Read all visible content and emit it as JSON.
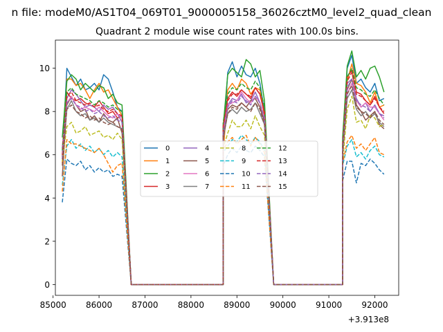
{
  "suptitle": "n file: modeM0/AS1T04_069T01_9000005158_36026cztM0_level2_quad_clean",
  "chart_data": {
    "type": "line",
    "title": "Quadrant 2 module wise count rates with 100.0s bins.",
    "xlabel": "",
    "ylabel": "",
    "x_offset_label": "+3.913e8",
    "xlim": [
      85050,
      92520
    ],
    "ylim": [
      -0.5,
      11.3
    ],
    "x_ticks": [
      85000,
      86000,
      87000,
      88000,
      89000,
      90000,
      91000,
      92000
    ],
    "x_tick_labels": [
      "85000",
      "86000",
      "87000",
      "88000",
      "89000",
      "90000",
      "91000",
      "92000"
    ],
    "y_ticks": [
      0,
      2,
      4,
      6,
      8,
      10
    ],
    "y_tick_labels": [
      "0",
      "2",
      "4",
      "6",
      "8",
      "10"
    ],
    "grid": false,
    "legend_position": "center",
    "legend_columns": 4,
    "orbits": [
      {
        "x_start": 85200,
        "x_end": 86500,
        "x_step": 100,
        "fall_to_zero_at": 86700
      },
      {
        "x_start": 88700,
        "x_end": 89600,
        "x_step": 100,
        "zero_before": 88700,
        "fall_to_zero_at": 89800
      },
      {
        "x_start": 91300,
        "x_end": 92200,
        "x_step": 100,
        "zero_before": 91300
      }
    ],
    "zero_span": [
      [
        86700,
        88700
      ],
      [
        89800,
        91300
      ]
    ],
    "series": [
      {
        "name": "0",
        "color": "#1f77b4",
        "dash": "solid",
        "values": [
          [
            5.9,
            10.0,
            9.6,
            9.2,
            9.5,
            9.0,
            9.1,
            9.3,
            9.0,
            9.7,
            9.5,
            8.9,
            8.2,
            8.0
          ],
          [
            6.5,
            9.8,
            10.3,
            9.6,
            10.1,
            9.7,
            9.6,
            10.0,
            9.3,
            8.0
          ],
          [
            6.5,
            10.0,
            10.6,
            9.3,
            9.5,
            9.1,
            8.9,
            9.3,
            8.5,
            8.6
          ]
        ]
      },
      {
        "name": "1",
        "color": "#ff7f0e",
        "dash": "solid",
        "values": [
          [
            5.6,
            9.5,
            9.5,
            9.2,
            9.3,
            9.0,
            8.6,
            9.0,
            9.3,
            8.9,
            9.0,
            8.6,
            8.2,
            7.8
          ],
          [
            6.0,
            9.0,
            9.3,
            9.0,
            9.5,
            9.3,
            8.8,
            9.1,
            9.0,
            7.8
          ],
          [
            6.0,
            9.4,
            10.2,
            9.3,
            9.2,
            8.9,
            8.4,
            8.9,
            8.2,
            8.3
          ]
        ]
      },
      {
        "name": "2",
        "color": "#2ca02c",
        "dash": "solid",
        "values": [
          [
            6.8,
            9.4,
            9.7,
            9.5,
            9.0,
            9.3,
            9.1,
            8.9,
            9.2,
            9.1,
            8.6,
            8.8,
            8.4,
            8.3
          ],
          [
            7.3,
            9.7,
            10.0,
            9.8,
            9.6,
            10.4,
            10.2,
            9.6,
            9.9,
            8.5
          ],
          [
            6.8,
            10.1,
            10.8,
            9.6,
            9.9,
            9.5,
            10.0,
            10.1,
            9.6,
            8.9
          ]
        ]
      },
      {
        "name": "3",
        "color": "#d62728",
        "dash": "solid",
        "values": [
          [
            5.8,
            8.9,
            8.6,
            8.5,
            8.6,
            8.4,
            8.3,
            8.2,
            8.5,
            8.2,
            7.9,
            8.0,
            7.7,
            7.8
          ],
          [
            7.2,
            8.6,
            8.9,
            8.7,
            9.0,
            8.8,
            8.6,
            9.1,
            8.8,
            7.9
          ],
          [
            6.5,
            9.6,
            9.9,
            8.9,
            8.8,
            8.5,
            8.3,
            8.7,
            8.2,
            7.9
          ]
        ]
      },
      {
        "name": "4",
        "color": "#9467bd",
        "dash": "solid",
        "values": [
          [
            6.3,
            8.6,
            9.0,
            8.8,
            8.5,
            8.2,
            8.3,
            8.2,
            8.0,
            8.3,
            8.1,
            8.2,
            7.9,
            7.5
          ],
          [
            6.8,
            8.3,
            8.6,
            8.5,
            8.8,
            8.4,
            8.5,
            8.9,
            8.4,
            7.6
          ],
          [
            6.2,
            9.3,
            9.5,
            8.6,
            8.2,
            8.4,
            8.0,
            8.3,
            7.9,
            7.8
          ]
        ]
      },
      {
        "name": "5",
        "color": "#8c564b",
        "dash": "solid",
        "values": [
          [
            5.0,
            8.3,
            8.7,
            8.3,
            8.0,
            8.1,
            7.6,
            7.8,
            7.5,
            7.9,
            7.6,
            7.5,
            7.7,
            7.0
          ],
          [
            7.0,
            8.1,
            8.3,
            8.2,
            8.4,
            8.2,
            8.5,
            8.6,
            8.2,
            7.5
          ],
          [
            6.0,
            9.0,
            9.5,
            8.3,
            8.0,
            7.6,
            7.8,
            8.0,
            7.4,
            7.2
          ]
        ]
      },
      {
        "name": "6",
        "color": "#e377c2",
        "dash": "solid",
        "values": [
          [
            6.4,
            8.4,
            8.7,
            8.3,
            8.1,
            8.2,
            8.1,
            8.0,
            8.2,
            8.0,
            7.8,
            7.7,
            7.9,
            7.7
          ],
          [
            7.1,
            8.3,
            8.4,
            8.5,
            8.9,
            8.6,
            8.4,
            8.7,
            8.4,
            7.7
          ],
          [
            6.2,
            8.8,
            9.3,
            8.5,
            8.2,
            8.4,
            8.2,
            8.2,
            7.9,
            7.6
          ]
        ]
      },
      {
        "name": "7",
        "color": "#7f7f7f",
        "dash": "solid",
        "values": [
          [
            6.0,
            8.1,
            8.5,
            8.0,
            7.8,
            7.9,
            7.6,
            7.7,
            7.5,
            7.7,
            7.5,
            7.4,
            7.3,
            7.2
          ],
          [
            6.7,
            7.9,
            8.1,
            7.9,
            8.2,
            8.0,
            8.1,
            8.4,
            7.9,
            7.4
          ],
          [
            6.0,
            8.6,
            9.0,
            8.1,
            7.8,
            8.0,
            7.7,
            7.9,
            7.5,
            7.3
          ]
        ]
      },
      {
        "name": "8",
        "color": "#bcbd22",
        "dash": "dash",
        "values": [
          [
            5.7,
            7.3,
            7.5,
            7.0,
            7.1,
            7.3,
            6.9,
            7.0,
            7.1,
            6.8,
            6.9,
            6.7,
            7.0,
            6.7
          ],
          [
            6.3,
            7.0,
            7.6,
            7.3,
            7.3,
            7.6,
            7.2,
            7.8,
            7.3,
            6.9
          ],
          [
            5.6,
            8.1,
            8.7,
            7.5,
            7.6,
            7.2,
            7.8,
            7.7,
            7.3,
            7.4
          ]
        ]
      },
      {
        "name": "9",
        "color": "#17becf",
        "dash": "dash",
        "values": [
          [
            4.6,
            6.4,
            6.7,
            6.3,
            6.5,
            6.2,
            6.4,
            6.1,
            6.3,
            6.0,
            6.2,
            5.9,
            6.1,
            5.9
          ],
          [
            6.1,
            6.4,
            6.7,
            6.6,
            6.9,
            6.7,
            6.5,
            6.8,
            6.6,
            6.2
          ],
          [
            5.5,
            6.4,
            6.7,
            5.9,
            6.1,
            5.8,
            6.2,
            6.4,
            6.0,
            5.9
          ]
        ]
      },
      {
        "name": "10",
        "color": "#1f77b4",
        "dash": "dash",
        "values": [
          [
            3.8,
            5.8,
            5.6,
            5.5,
            5.7,
            5.3,
            5.5,
            5.2,
            5.4,
            5.2,
            5.3,
            5.0,
            5.1,
            5.0
          ],
          [
            5.5,
            6.0,
            6.3,
            6.1,
            6.4,
            6.2,
            6.1,
            6.4,
            6.2,
            5.9
          ],
          [
            4.8,
            5.7,
            5.7,
            4.7,
            5.6,
            5.5,
            5.8,
            5.6,
            5.3,
            5.1
          ]
        ]
      },
      {
        "name": "11",
        "color": "#ff7f0e",
        "dash": "dash",
        "values": [
          [
            4.3,
            6.7,
            6.5,
            6.5,
            6.4,
            6.3,
            6.2,
            6.1,
            6.3,
            6.0,
            5.6,
            5.2,
            5.5,
            5.6
          ],
          [
            6.2,
            6.6,
            6.8,
            6.5,
            6.7,
            6.9,
            6.4,
            6.8,
            6.5,
            6.1
          ],
          [
            5.6,
            6.6,
            6.9,
            6.3,
            6.5,
            6.2,
            6.5,
            6.8,
            6.1,
            6.0
          ]
        ]
      },
      {
        "name": "12",
        "color": "#2ca02c",
        "dash": "dash",
        "values": [
          [
            6.2,
            8.9,
            9.1,
            8.8,
            8.7,
            8.6,
            8.5,
            8.3,
            8.5,
            8.4,
            8.2,
            8.3,
            8.1,
            8.0
          ],
          [
            7.5,
            8.8,
            9.1,
            9.0,
            9.3,
            9.1,
            9.0,
            9.4,
            9.1,
            8.2
          ],
          [
            6.6,
            9.6,
            10.0,
            9.1,
            9.0,
            8.8,
            8.7,
            9.0,
            8.6,
            8.3
          ]
        ]
      },
      {
        "name": "13",
        "color": "#d62728",
        "dash": "dash",
        "values": [
          [
            6.0,
            8.7,
            8.9,
            8.5,
            8.4,
            8.3,
            8.4,
            8.2,
            8.3,
            8.1,
            8.0,
            8.1,
            7.9,
            7.8
          ],
          [
            7.3,
            8.5,
            8.8,
            8.8,
            9.0,
            8.8,
            8.7,
            9.1,
            8.8,
            8.0
          ],
          [
            6.4,
            9.4,
            9.8,
            8.8,
            8.7,
            8.5,
            8.3,
            8.6,
            8.2,
            8.0
          ]
        ]
      },
      {
        "name": "14",
        "color": "#9467bd",
        "dash": "dash",
        "values": [
          [
            5.8,
            8.4,
            8.6,
            8.3,
            8.2,
            8.0,
            8.1,
            7.9,
            8.0,
            7.8,
            7.7,
            7.8,
            7.6,
            7.5
          ],
          [
            7.0,
            8.2,
            8.5,
            8.4,
            8.7,
            8.5,
            8.3,
            8.7,
            8.4,
            7.7
          ],
          [
            6.2,
            9.1,
            9.5,
            8.5,
            8.3,
            8.2,
            8.0,
            8.3,
            7.9,
            7.7
          ]
        ]
      },
      {
        "name": "15",
        "color": "#8c564b",
        "dash": "dash",
        "values": [
          [
            5.5,
            8.1,
            8.3,
            8.0,
            7.9,
            7.7,
            7.8,
            7.6,
            7.7,
            7.5,
            7.4,
            7.5,
            7.3,
            7.2
          ],
          [
            6.8,
            7.9,
            8.2,
            8.1,
            8.4,
            8.2,
            8.0,
            8.4,
            8.1,
            7.4
          ],
          [
            6.0,
            8.8,
            9.2,
            8.2,
            8.0,
            7.9,
            7.7,
            8.0,
            7.6,
            7.4
          ]
        ]
      }
    ]
  }
}
